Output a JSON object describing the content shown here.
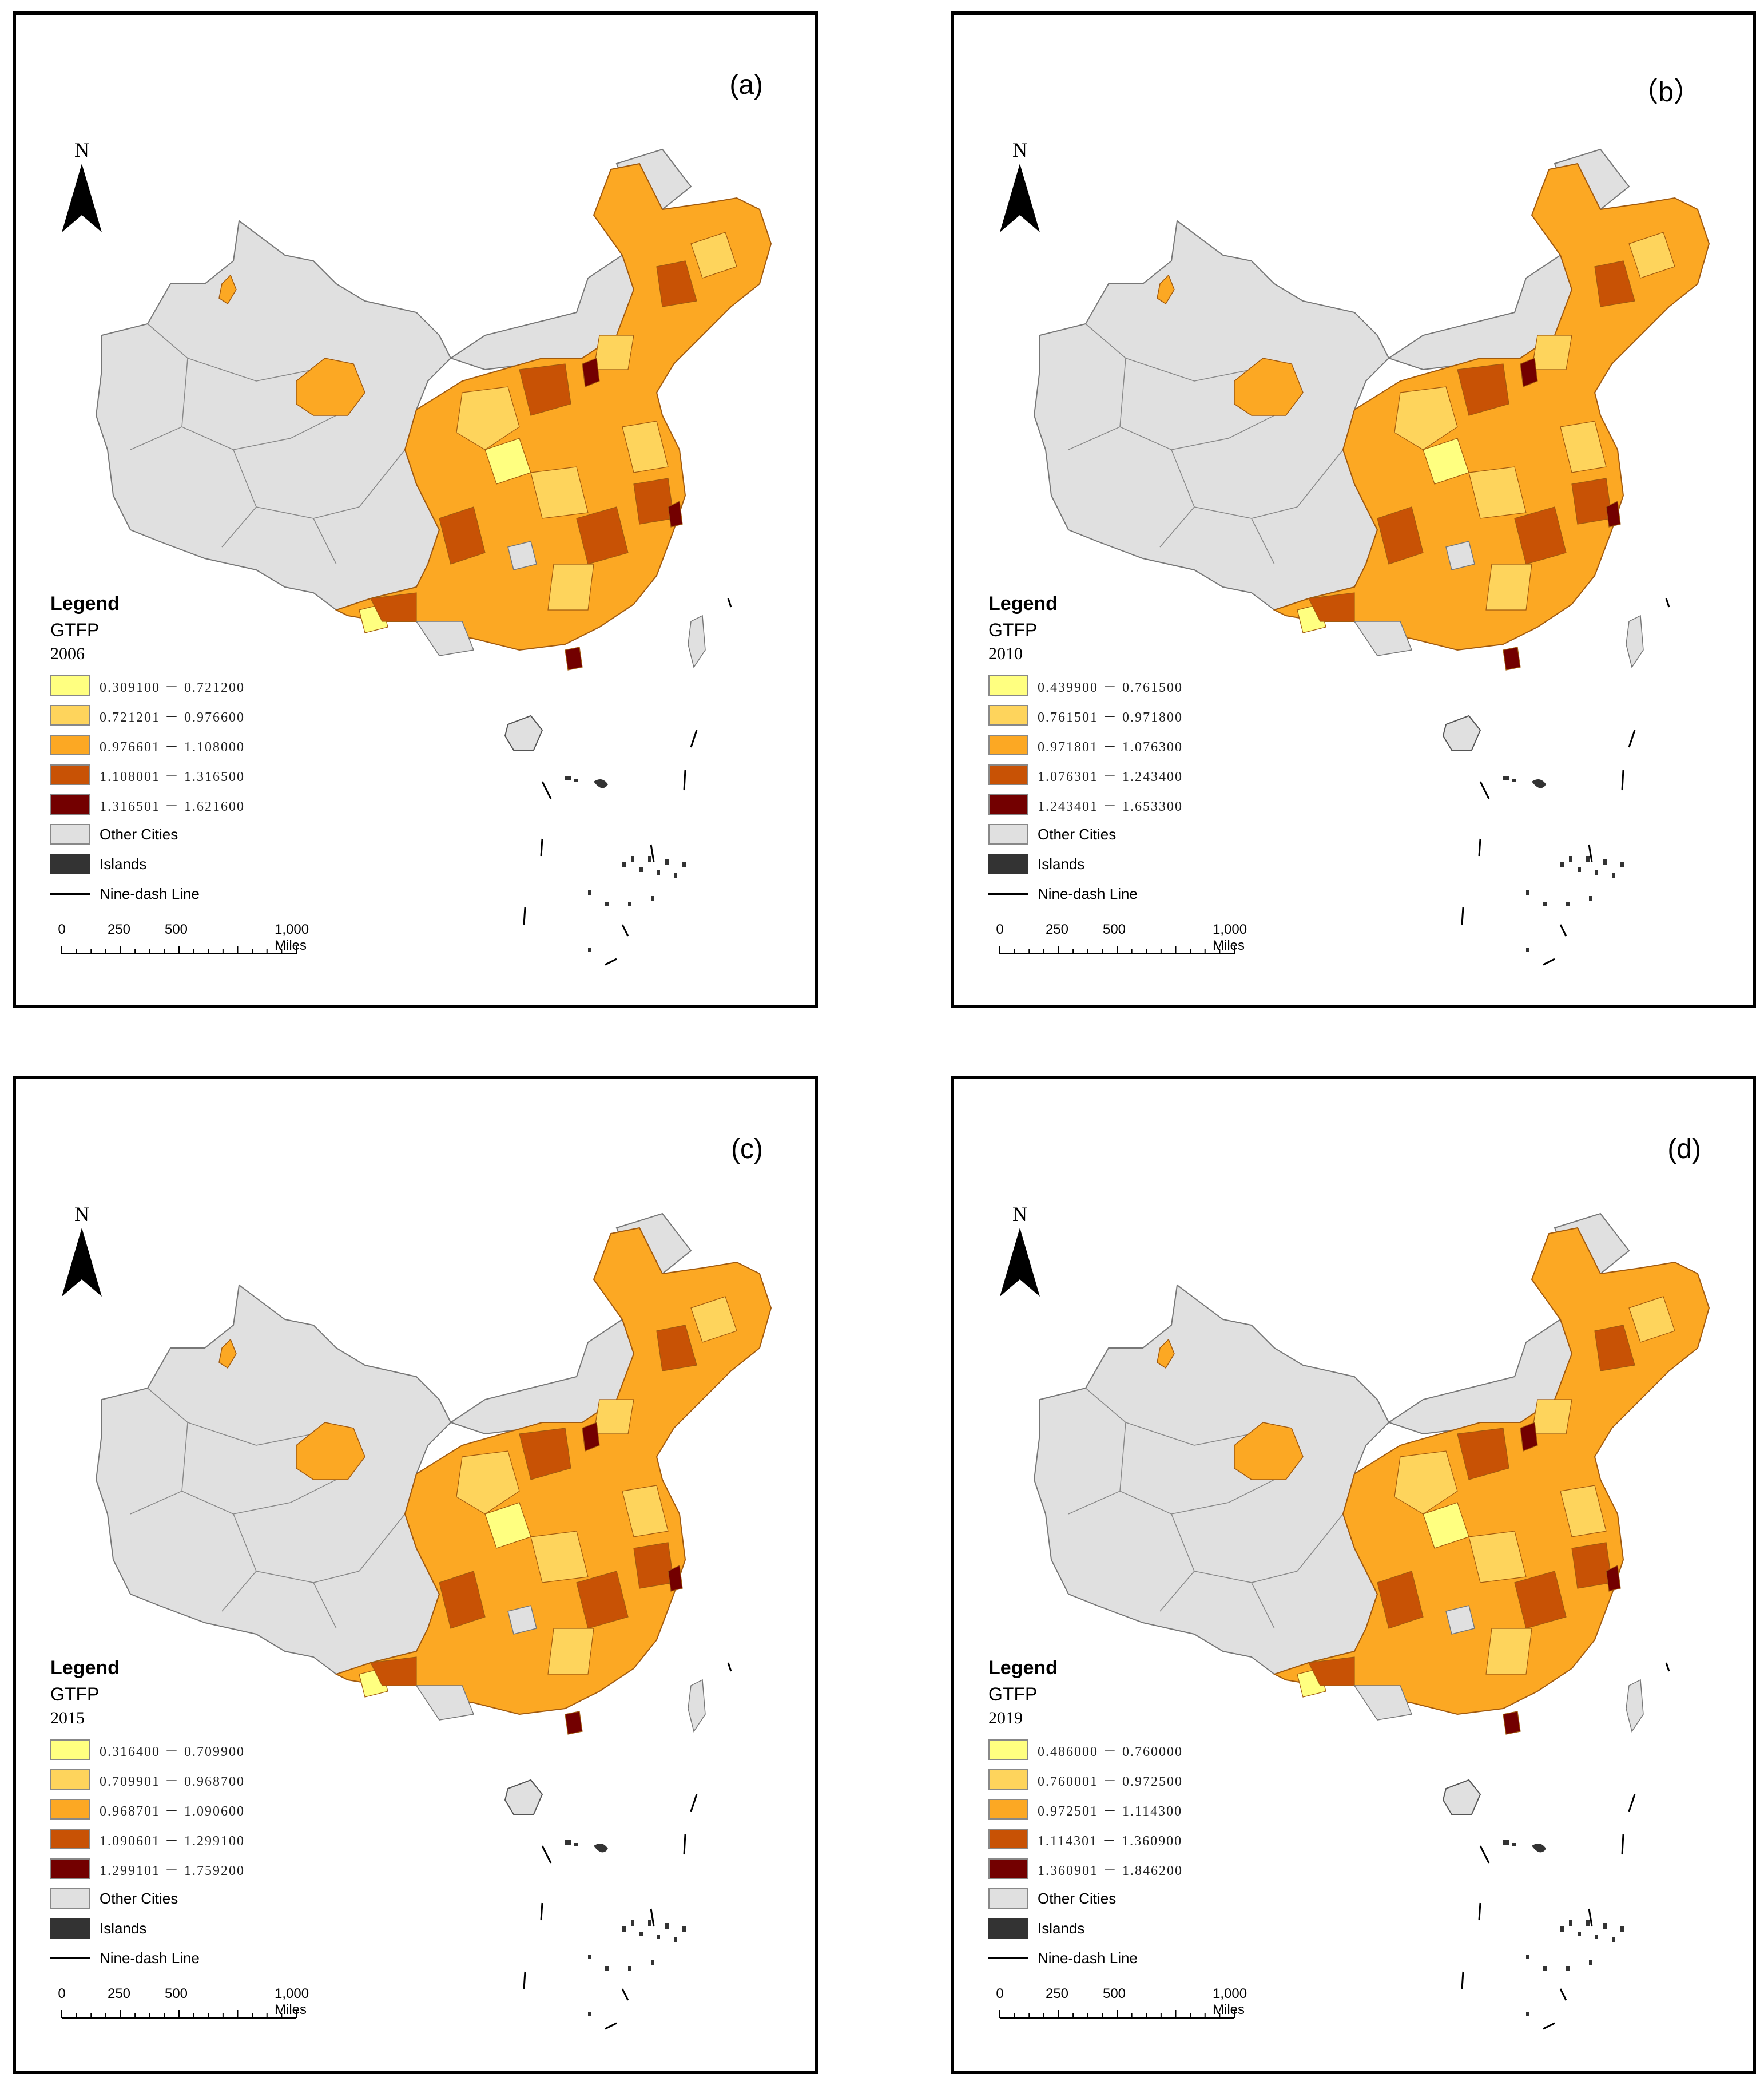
{
  "figure": {
    "panels": [
      {
        "label": "(a)",
        "north": "N",
        "legend_title": "Legend",
        "field": "GTFP",
        "year": "2006",
        "classes": [
          {
            "range": "0.309100 － 0.721200",
            "color": "#ffff80"
          },
          {
            "range": "0.721201 － 0.976600",
            "color": "#fed45c"
          },
          {
            "range": "0.976601 － 1.108000",
            "color": "#fca823"
          },
          {
            "range": "1.108001 － 1.316500",
            "color": "#c85205"
          },
          {
            "range": "1.316501 － 1.621600",
            "color": "#730000"
          }
        ],
        "other_label": "Other Cities",
        "islands_label": "Islands",
        "line_label": "Nine-dash Line",
        "scale": {
          "t0": "0",
          "t1": "250",
          "t2": "500",
          "t3": "1,000 Miles"
        }
      },
      {
        "label": "（b）",
        "north": "N",
        "legend_title": "Legend",
        "field": "GTFP",
        "year": "2010",
        "classes": [
          {
            "range": "0.439900 － 0.761500",
            "color": "#ffff80"
          },
          {
            "range": "0.761501 － 0.971800",
            "color": "#fed45c"
          },
          {
            "range": "0.971801 － 1.076300",
            "color": "#fca823"
          },
          {
            "range": "1.076301 － 1.243400",
            "color": "#c85205"
          },
          {
            "range": "1.243401 － 1.653300",
            "color": "#730000"
          }
        ],
        "other_label": "Other Cities",
        "islands_label": "Islands",
        "line_label": "Nine-dash Line",
        "scale": {
          "t0": "0",
          "t1": "250",
          "t2": "500",
          "t3": "1,000 Miles"
        }
      },
      {
        "label": "(c)",
        "north": "N",
        "legend_title": "Legend",
        "field": "GTFP",
        "year": "2015",
        "classes": [
          {
            "range": "0.316400 － 0.709900",
            "color": "#ffff80"
          },
          {
            "range": "0.709901 － 0.968700",
            "color": "#fed45c"
          },
          {
            "range": "0.968701 － 1.090600",
            "color": "#fca823"
          },
          {
            "range": "1.090601 － 1.299100",
            "color": "#c85205"
          },
          {
            "range": "1.299101 － 1.759200",
            "color": "#730000"
          }
        ],
        "other_label": "Other Cities",
        "islands_label": "Islands",
        "line_label": "Nine-dash Line",
        "scale": {
          "t0": "0",
          "t1": "250",
          "t2": "500",
          "t3": "1,000 Miles"
        }
      },
      {
        "label": "(d)",
        "north": "N",
        "legend_title": "Legend",
        "field": "GTFP",
        "year": "2019",
        "classes": [
          {
            "range": "0.486000 － 0.760000",
            "color": "#ffff80"
          },
          {
            "range": "0.760001 － 0.972500",
            "color": "#fed45c"
          },
          {
            "range": "0.972501 － 1.114300",
            "color": "#fca823"
          },
          {
            "range": "1.114301 － 1.360900",
            "color": "#c85205"
          },
          {
            "range": "1.360901 － 1.846200",
            "color": "#730000"
          }
        ],
        "other_label": "Other Cities",
        "islands_label": "Islands",
        "line_label": "Nine-dash Line",
        "scale": {
          "t0": "0",
          "t1": "250",
          "t2": "500",
          "t3": "1,000 Miles"
        }
      }
    ],
    "colors": {
      "other_cities": "#e0e0e0",
      "islands": "#333333",
      "border": "#000000"
    }
  }
}
